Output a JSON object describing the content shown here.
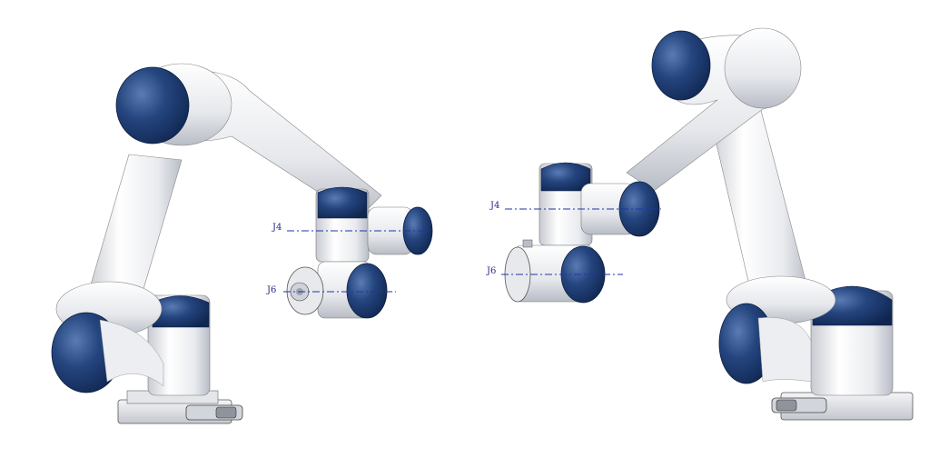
{
  "figure": {
    "left_robot": {
      "labels": {
        "j4": "J4",
        "j6": "J6"
      }
    },
    "right_robot": {
      "labels": {
        "j4": "J4",
        "j6": "J6"
      }
    },
    "colors": {
      "cap": "#1e3a6e",
      "cap_light": "#3b5f9a",
      "body": "#f2f3f6",
      "shade": "#c9ccd3",
      "axis": "#2233aa"
    }
  }
}
